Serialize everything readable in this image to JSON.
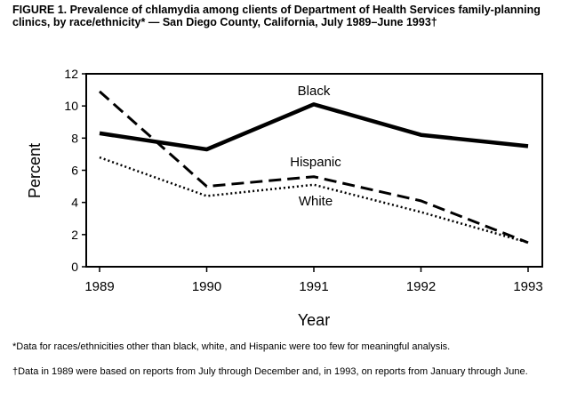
{
  "chart_data": {
    "type": "line",
    "title": "FIGURE 1. Prevalence of chlamydia among clients of Department of Health Services family-planning clinics, by race/ethnicity* — San Diego County, California, July 1989–June 1993†",
    "xlabel": "Year",
    "ylabel": "Percent",
    "x": [
      "1989",
      "1990",
      "1991",
      "1992",
      "1993"
    ],
    "ylim": [
      0,
      12
    ],
    "yticks": [
      "0",
      "2",
      "4",
      "6",
      "8",
      "10",
      "12"
    ],
    "grid": false,
    "series": [
      {
        "name": "Black",
        "style": "solid",
        "values": [
          8.3,
          7.3,
          10.1,
          8.2,
          7.5
        ]
      },
      {
        "name": "Hispanic",
        "style": "dashed",
        "values": [
          10.9,
          5.0,
          5.6,
          4.1,
          1.5
        ]
      },
      {
        "name": "White",
        "style": "dotted",
        "values": [
          6.8,
          4.4,
          5.1,
          3.4,
          1.5
        ]
      }
    ]
  },
  "footnotes": [
    "*Data for races/ethnicities other than black, white, and Hispanic were too few for meaningful analysis.",
    "†Data in 1989 were based on reports from July through December and, in 1993, on reports from January through June."
  ]
}
